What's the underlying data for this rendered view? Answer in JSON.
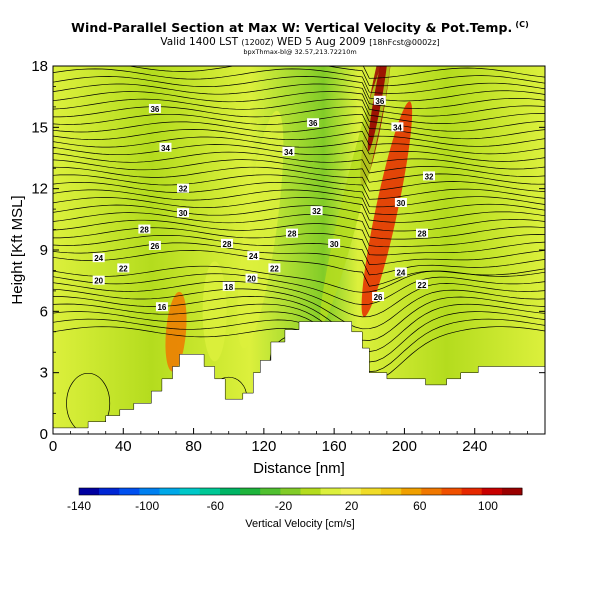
{
  "header": {
    "title": "Wind-Parallel Section at Max W: Vertical Velocity & Pot.Temp.",
    "title_mark": "(C)",
    "valid_line": "Valid 1400 LST",
    "valid_paren": "(1200Z)",
    "valid_date": "WED 5 Aug 2009",
    "valid_tag": "[18hFcst@0002z]",
    "sub_line": "bpxThmax-bl@ 32.57,213.72210m"
  },
  "colors": {
    "plot_border": "#000000",
    "terrain": "#ffffff",
    "isentrope": "#000000"
  },
  "chart_data": {
    "type": "heatmap",
    "xlabel": "Distance [nm]",
    "ylabel": "Height [Kft MSL]",
    "xlim": [
      0,
      280
    ],
    "ylim": [
      0,
      18
    ],
    "xticks": [
      0,
      40,
      80,
      120,
      160,
      200,
      240
    ],
    "yticks": [
      0,
      3,
      6,
      9,
      12,
      15,
      18
    ],
    "colorbar": {
      "title": "Vertical Velocity [cm/s]",
      "min": -140,
      "max": 120,
      "step": 10,
      "ticks": [
        -140,
        -100,
        -60,
        -20,
        20,
        60,
        100
      ],
      "colors": [
        "#0000a0",
        "#0026d4",
        "#0050f0",
        "#0080f0",
        "#00a8e8",
        "#00c8c8",
        "#00c896",
        "#00b464",
        "#1eb43c",
        "#50c030",
        "#82cc28",
        "#b4dc1e",
        "#dcf03c",
        "#f0f050",
        "#f0dc28",
        "#f0c814",
        "#f0a000",
        "#f07800",
        "#f05000",
        "#e62800",
        "#c80000",
        "#9a0000"
      ]
    },
    "terrain_profile": [
      {
        "x": 0,
        "z": 0.3
      },
      {
        "x": 20,
        "z": 0.3
      },
      {
        "x": 20,
        "z": 0.6
      },
      {
        "x": 30,
        "z": 0.6
      },
      {
        "x": 30,
        "z": 0.9
      },
      {
        "x": 38,
        "z": 0.9
      },
      {
        "x": 38,
        "z": 1.2
      },
      {
        "x": 46,
        "z": 1.2
      },
      {
        "x": 46,
        "z": 1.5
      },
      {
        "x": 56,
        "z": 1.5
      },
      {
        "x": 56,
        "z": 2.1
      },
      {
        "x": 62,
        "z": 2.1
      },
      {
        "x": 62,
        "z": 2.7
      },
      {
        "x": 68,
        "z": 2.7
      },
      {
        "x": 68,
        "z": 3.3
      },
      {
        "x": 72,
        "z": 3.3
      },
      {
        "x": 72,
        "z": 3.9
      },
      {
        "x": 86,
        "z": 3.9
      },
      {
        "x": 86,
        "z": 3.3
      },
      {
        "x": 92,
        "z": 3.3
      },
      {
        "x": 92,
        "z": 2.7
      },
      {
        "x": 98,
        "z": 2.7
      },
      {
        "x": 98,
        "z": 1.7
      },
      {
        "x": 108,
        "z": 1.7
      },
      {
        "x": 108,
        "z": 2.0
      },
      {
        "x": 114,
        "z": 2.0
      },
      {
        "x": 114,
        "z": 3.0
      },
      {
        "x": 118,
        "z": 3.0
      },
      {
        "x": 118,
        "z": 3.6
      },
      {
        "x": 124,
        "z": 3.6
      },
      {
        "x": 124,
        "z": 4.5
      },
      {
        "x": 132,
        "z": 4.5
      },
      {
        "x": 132,
        "z": 5.1
      },
      {
        "x": 140,
        "z": 5.1
      },
      {
        "x": 140,
        "z": 5.5
      },
      {
        "x": 170,
        "z": 5.5
      },
      {
        "x": 170,
        "z": 5.0
      },
      {
        "x": 176,
        "z": 5.0
      },
      {
        "x": 176,
        "z": 4.2
      },
      {
        "x": 180,
        "z": 4.2
      },
      {
        "x": 180,
        "z": 3.0
      },
      {
        "x": 190,
        "z": 3.0
      },
      {
        "x": 190,
        "z": 2.7
      },
      {
        "x": 212,
        "z": 2.7
      },
      {
        "x": 212,
        "z": 2.4
      },
      {
        "x": 224,
        "z": 2.4
      },
      {
        "x": 224,
        "z": 2.7
      },
      {
        "x": 232,
        "z": 2.7
      },
      {
        "x": 232,
        "z": 3.0
      },
      {
        "x": 242,
        "z": 3.0
      },
      {
        "x": 242,
        "z": 3.3
      },
      {
        "x": 280,
        "z": 3.3
      }
    ],
    "velocity_features": [
      {
        "name": "background",
        "value": 10
      },
      {
        "name": "updraft-core",
        "x": 184,
        "z": 16,
        "value": 110
      },
      {
        "name": "updraft-plume",
        "x": 190,
        "z": 11,
        "value": 50
      },
      {
        "name": "downdraft-band",
        "x": 172,
        "z": 12,
        "value": -30
      },
      {
        "name": "downdraft-band-2",
        "x": 118,
        "z": 10,
        "value": -20
      },
      {
        "name": "downdraft-band-3",
        "x": 92,
        "z": 6,
        "value": -15
      },
      {
        "name": "updraft-left",
        "x": 70,
        "z": 5,
        "value": 30
      }
    ],
    "isentrope_labels": [
      {
        "text": "36",
        "x": 58,
        "z": 15.9
      },
      {
        "text": "36",
        "x": 148,
        "z": 15.2
      },
      {
        "text": "36",
        "x": 186,
        "z": 16.3
      },
      {
        "text": "34",
        "x": 64,
        "z": 14.0
      },
      {
        "text": "34",
        "x": 134,
        "z": 13.8
      },
      {
        "text": "34",
        "x": 196,
        "z": 15.0
      },
      {
        "text": "32",
        "x": 74,
        "z": 12.0
      },
      {
        "text": "32",
        "x": 150,
        "z": 10.9
      },
      {
        "text": "32",
        "x": 214,
        "z": 12.6
      },
      {
        "text": "30",
        "x": 74,
        "z": 10.8
      },
      {
        "text": "30",
        "x": 160,
        "z": 9.3
      },
      {
        "text": "30",
        "x": 198,
        "z": 11.3
      },
      {
        "text": "28",
        "x": 52,
        "z": 10.0
      },
      {
        "text": "28",
        "x": 99,
        "z": 9.3
      },
      {
        "text": "28",
        "x": 136,
        "z": 9.8
      },
      {
        "text": "28",
        "x": 210,
        "z": 9.8
      },
      {
        "text": "26",
        "x": 58,
        "z": 9.2
      },
      {
        "text": "26",
        "x": 185,
        "z": 6.7
      },
      {
        "text": "24",
        "x": 26,
        "z": 8.6
      },
      {
        "text": "24",
        "x": 114,
        "z": 8.7
      },
      {
        "text": "24",
        "x": 198,
        "z": 7.9
      },
      {
        "text": "22",
        "x": 40,
        "z": 8.1
      },
      {
        "text": "22",
        "x": 126,
        "z": 8.1
      },
      {
        "text": "22",
        "x": 210,
        "z": 7.3
      },
      {
        "text": "20",
        "x": 26,
        "z": 7.5
      },
      {
        "text": "20",
        "x": 113,
        "z": 7.6
      },
      {
        "text": "18",
        "x": 100,
        "z": 7.2
      },
      {
        "text": "16",
        "x": 62,
        "z": 6.2
      }
    ]
  }
}
